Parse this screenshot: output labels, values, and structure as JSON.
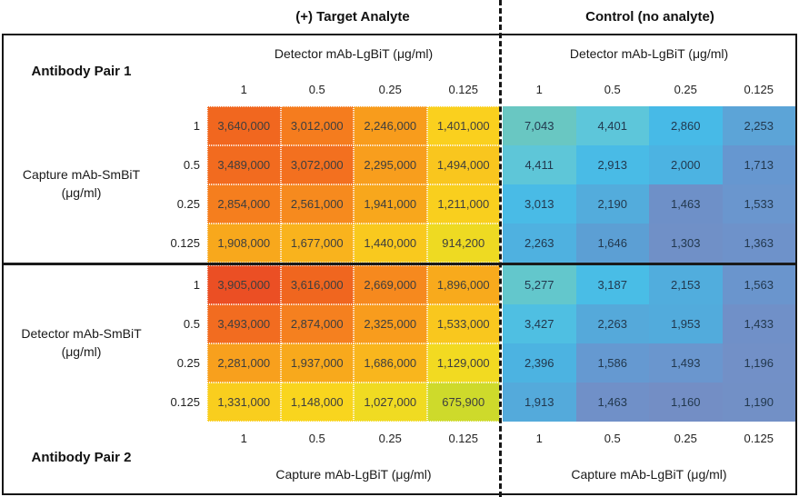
{
  "top_header": {
    "left_label": "(+) Target Analyte",
    "right_label": "Control (no analyte)"
  },
  "pair1": {
    "name": "Antibody Pair 1",
    "row_axis_line1": "Capture mAb-SmBiT",
    "row_axis_line2": "(μg/ml)",
    "col_axis_left": "Detector mAb-LgBiT (μg/ml)",
    "col_axis_right": "Detector mAb-LgBiT (μg/ml)"
  },
  "pair2": {
    "name": "Antibody Pair 2",
    "row_axis_line1": "Detector mAb-SmBiT",
    "row_axis_line2": "(μg/ml)",
    "col_axis_bottom_left": "Capture mAb-LgBiT (μg/ml)",
    "col_axis_bottom_right": "Capture mAb-LgBiT (μg/ml)"
  },
  "chart_data": [
    {
      "id": "pair1_target",
      "type": "heatmap",
      "title": "(+) Target Analyte — Antibody Pair 1",
      "xlabel": "Detector mAb-LgBiT (μg/ml)",
      "ylabel": "Capture mAb-SmBiT (μg/ml)",
      "x": [
        1,
        0.5,
        0.25,
        0.125
      ],
      "y": [
        1,
        0.5,
        0.25,
        0.125
      ],
      "values": [
        [
          3640000,
          3012000,
          2246000,
          1401000
        ],
        [
          3489000,
          3072000,
          2295000,
          1494000
        ],
        [
          2854000,
          2561000,
          1941000,
          1211000
        ],
        [
          1908000,
          1677000,
          1440000,
          914200
        ]
      ],
      "colors": [
        [
          "#F1671F",
          "#F57C1E",
          "#F89C1C",
          "#FAD01E"
        ],
        [
          "#F26B1F",
          "#F3701F",
          "#F89E1D",
          "#F9C61E"
        ],
        [
          "#F57E1E",
          "#F68A1E",
          "#F8A71C",
          "#F9CF1E"
        ],
        [
          "#F8A81C",
          "#F9B31D",
          "#F9C91E",
          "#EEDA22"
        ]
      ],
      "text_color": "#3E3E3E"
    },
    {
      "id": "pair1_control",
      "type": "heatmap",
      "title": "Control (no analyte) — Antibody Pair 1",
      "xlabel": "Detector mAb-LgBiT (μg/ml)",
      "ylabel": "Capture mAb-SmBiT (μg/ml)",
      "x": [
        1,
        0.5,
        0.25,
        0.125
      ],
      "y": [
        1,
        0.5,
        0.25,
        0.125
      ],
      "values": [
        [
          7043,
          4401,
          2860,
          2253
        ],
        [
          4411,
          2913,
          2000,
          1713
        ],
        [
          3013,
          2190,
          1463,
          1533
        ],
        [
          2263,
          1646,
          1303,
          1363
        ]
      ],
      "colors": [
        [
          "#69C7C2",
          "#5DC6DA",
          "#47BAE7",
          "#5CA4D7"
        ],
        [
          "#5EC6D8",
          "#49BBE6",
          "#4CB3E2",
          "#6697D0"
        ],
        [
          "#49BBE6",
          "#53ACDC",
          "#6E90C8",
          "#6A96CE"
        ],
        [
          "#4FB1E0",
          "#5C9FD4",
          "#7090C7",
          "#6E92CA"
        ]
      ],
      "text_color": "#22384E"
    },
    {
      "id": "pair2_target",
      "type": "heatmap",
      "title": "(+) Target Analyte — Antibody Pair 2",
      "xlabel": "Capture mAb-LgBiT (μg/ml)",
      "ylabel": "Detector mAb-SmBiT (μg/ml)",
      "x": [
        1,
        0.5,
        0.25,
        0.125
      ],
      "y": [
        1,
        0.5,
        0.25,
        0.125
      ],
      "values": [
        [
          3905000,
          3616000,
          2669000,
          1896000
        ],
        [
          3493000,
          2874000,
          2325000,
          1533000
        ],
        [
          2281000,
          1937000,
          1686000,
          1129000
        ],
        [
          1331000,
          1148000,
          1027000,
          675900
        ]
      ],
      "colors": [
        [
          "#EB4F24",
          "#F0661F",
          "#F6891E",
          "#F8AA1C"
        ],
        [
          "#F26C20",
          "#F5801F",
          "#F89C1D",
          "#F9C71E"
        ],
        [
          "#F8A01D",
          "#F8A91C",
          "#F9B61D",
          "#F2DA21"
        ],
        [
          "#F9CE1E",
          "#F9D51E",
          "#F0DB22",
          "#CEDA2B"
        ]
      ],
      "text_color": "#3E3E3E"
    },
    {
      "id": "pair2_control",
      "type": "heatmap",
      "title": "Control (no analyte) — Antibody Pair 2",
      "xlabel": "Capture mAb-LgBiT (μg/ml)",
      "ylabel": "Detector mAb-SmBiT (μg/ml)",
      "x": [
        1,
        0.5,
        0.25,
        0.125
      ],
      "y": [
        1,
        0.5,
        0.25,
        0.125
      ],
      "values": [
        [
          5277,
          3187,
          2153,
          1563
        ],
        [
          3427,
          2263,
          1953,
          1433
        ],
        [
          2396,
          1586,
          1493,
          1196
        ],
        [
          1913,
          1463,
          1160,
          1190
        ]
      ],
      "colors": [
        [
          "#63C7CC",
          "#49BDE6",
          "#51ADDD",
          "#6A95CD"
        ],
        [
          "#4FBFE2",
          "#55A9DA",
          "#52ABDC",
          "#7090C8"
        ],
        [
          "#4CB3E1",
          "#6599D1",
          "#6A96CE",
          "#7290C7"
        ],
        [
          "#54AADB",
          "#7090C8",
          "#738EC5",
          "#7290C6"
        ]
      ],
      "text_color": "#22384E"
    }
  ]
}
